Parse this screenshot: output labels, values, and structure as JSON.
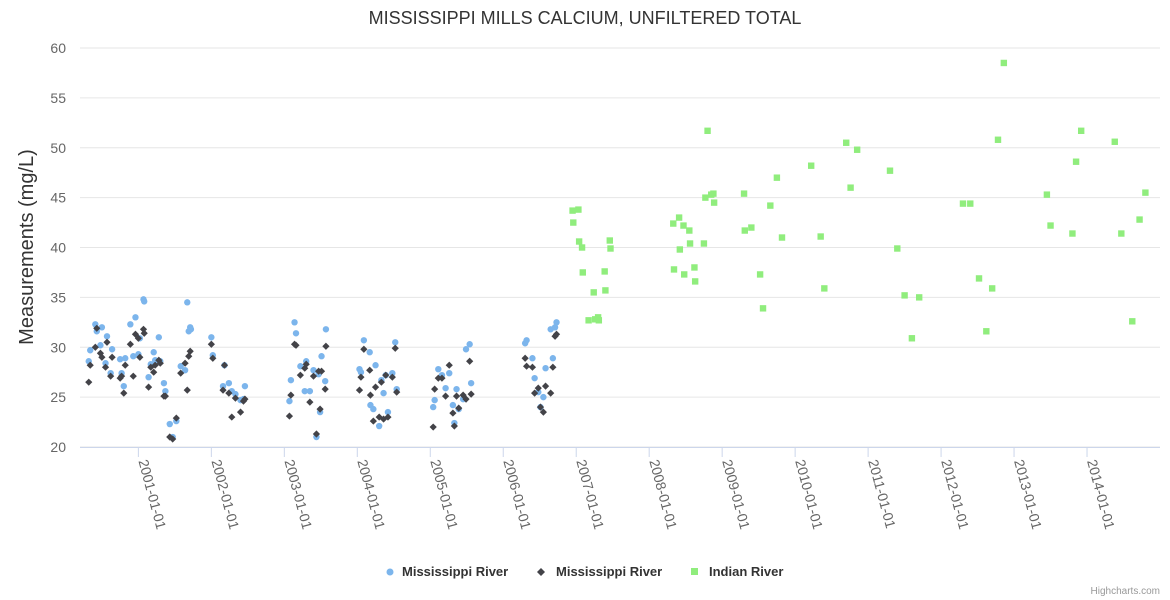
{
  "chart_data": {
    "type": "scatter",
    "title": "MISSISSIPPI MILLS CALCIUM, UNFILTERED TOTAL",
    "xlabel": "",
    "ylabel": "Measurements (mg/L)",
    "ylim": [
      20,
      60
    ],
    "yticks": [
      20,
      25,
      30,
      35,
      40,
      45,
      50,
      55,
      60
    ],
    "xlim": [
      2000.2,
      2015.0
    ],
    "xticks": [
      {
        "value": 2001.0,
        "label": "2001-01-01"
      },
      {
        "value": 2002.0,
        "label": "2002-01-01"
      },
      {
        "value": 2003.0,
        "label": "2003-01-01"
      },
      {
        "value": 2004.0,
        "label": "2004-01-01"
      },
      {
        "value": 2005.0,
        "label": "2005-01-01"
      },
      {
        "value": 2006.0,
        "label": "2006-01-01"
      },
      {
        "value": 2007.0,
        "label": "2007-01-01"
      },
      {
        "value": 2008.0,
        "label": "2008-01-01"
      },
      {
        "value": 2009.0,
        "label": "2009-01-01"
      },
      {
        "value": 2010.0,
        "label": "2010-01-01"
      },
      {
        "value": 2011.0,
        "label": "2011-01-01"
      },
      {
        "value": 2012.0,
        "label": "2012-01-01"
      },
      {
        "value": 2013.0,
        "label": "2013-01-01"
      },
      {
        "value": 2014.0,
        "label": "2014-01-01"
      }
    ],
    "grid": true,
    "legend_position": "bottom-center",
    "series": [
      {
        "name": "Mississippi River",
        "marker": "circle",
        "color": "#7cb5ec",
        "points": [
          [
            2000.32,
            28.6
          ],
          [
            2000.34,
            29.7
          ],
          [
            2000.41,
            32.3
          ],
          [
            2000.43,
            31.6
          ],
          [
            2000.48,
            30.2
          ],
          [
            2000.5,
            32.0
          ],
          [
            2000.55,
            28.4
          ],
          [
            2000.57,
            31.1
          ],
          [
            2000.62,
            27.4
          ],
          [
            2000.64,
            29.8
          ],
          [
            2000.75,
            28.8
          ],
          [
            2000.77,
            27.4
          ],
          [
            2000.8,
            26.1
          ],
          [
            2000.82,
            28.9
          ],
          [
            2000.89,
            32.3
          ],
          [
            2000.93,
            29.1
          ],
          [
            2000.96,
            33.0
          ],
          [
            2001.0,
            29.3
          ],
          [
            2001.02,
            30.9
          ],
          [
            2001.07,
            34.8
          ],
          [
            2001.08,
            34.6
          ],
          [
            2001.14,
            27.0
          ],
          [
            2001.17,
            28.3
          ],
          [
            2001.21,
            29.5
          ],
          [
            2001.23,
            28.7
          ],
          [
            2001.28,
            31.0
          ],
          [
            2001.3,
            28.6
          ],
          [
            2001.35,
            26.4
          ],
          [
            2001.37,
            25.6
          ],
          [
            2001.43,
            22.3
          ],
          [
            2001.47,
            21.0
          ],
          [
            2001.52,
            22.6
          ],
          [
            2001.58,
            28.1
          ],
          [
            2001.64,
            27.7
          ],
          [
            2001.67,
            34.5
          ],
          [
            2001.69,
            31.6
          ],
          [
            2001.71,
            32.0
          ],
          [
            2001.72,
            31.8
          ],
          [
            2002.0,
            31.0
          ],
          [
            2002.02,
            29.2
          ],
          [
            2002.16,
            26.1
          ],
          [
            2002.18,
            28.2
          ],
          [
            2002.24,
            26.4
          ],
          [
            2002.28,
            25.6
          ],
          [
            2002.33,
            25.3
          ],
          [
            2002.4,
            24.7
          ],
          [
            2002.44,
            24.8
          ],
          [
            2002.46,
            26.1
          ],
          [
            2003.07,
            24.6
          ],
          [
            2003.09,
            26.7
          ],
          [
            2003.14,
            32.5
          ],
          [
            2003.16,
            31.4
          ],
          [
            2003.22,
            28.1
          ],
          [
            2003.28,
            25.6
          ],
          [
            2003.3,
            28.6
          ],
          [
            2003.35,
            25.6
          ],
          [
            2003.4,
            27.7
          ],
          [
            2003.44,
            21.0
          ],
          [
            2003.47,
            27.3
          ],
          [
            2003.49,
            23.5
          ],
          [
            2003.51,
            29.1
          ],
          [
            2003.56,
            26.6
          ],
          [
            2003.57,
            31.8
          ],
          [
            2004.03,
            27.8
          ],
          [
            2004.05,
            27.5
          ],
          [
            2004.09,
            30.7
          ],
          [
            2004.17,
            29.5
          ],
          [
            2004.18,
            24.2
          ],
          [
            2004.22,
            23.8
          ],
          [
            2004.25,
            28.2
          ],
          [
            2004.3,
            22.1
          ],
          [
            2004.33,
            26.7
          ],
          [
            2004.36,
            25.4
          ],
          [
            2004.39,
            27.2
          ],
          [
            2004.42,
            23.5
          ],
          [
            2004.48,
            27.4
          ],
          [
            2004.52,
            30.5
          ],
          [
            2004.54,
            25.8
          ],
          [
            2005.04,
            24.0
          ],
          [
            2005.06,
            24.7
          ],
          [
            2005.11,
            27.8
          ],
          [
            2005.16,
            27.2
          ],
          [
            2005.21,
            25.9
          ],
          [
            2005.26,
            27.4
          ],
          [
            2005.31,
            24.2
          ],
          [
            2005.33,
            22.4
          ],
          [
            2005.36,
            25.8
          ],
          [
            2005.39,
            23.8
          ],
          [
            2005.45,
            24.8
          ],
          [
            2005.49,
            29.8
          ],
          [
            2005.54,
            30.3
          ],
          [
            2005.56,
            26.4
          ],
          [
            2006.3,
            30.4
          ],
          [
            2006.32,
            30.7
          ],
          [
            2006.4,
            28.9
          ],
          [
            2006.43,
            26.9
          ],
          [
            2006.48,
            25.5
          ],
          [
            2006.51,
            24.0
          ],
          [
            2006.55,
            25.0
          ],
          [
            2006.58,
            27.9
          ],
          [
            2006.65,
            31.8
          ],
          [
            2006.68,
            28.9
          ],
          [
            2006.71,
            32.0
          ],
          [
            2006.73,
            32.5
          ]
        ]
      },
      {
        "name": "Mississippi River",
        "marker": "diamond",
        "color": "#434348",
        "points": [
          [
            2000.32,
            26.5
          ],
          [
            2000.34,
            28.2
          ],
          [
            2000.41,
            30.0
          ],
          [
            2000.43,
            31.9
          ],
          [
            2000.48,
            29.4
          ],
          [
            2000.5,
            29.0
          ],
          [
            2000.55,
            28.0
          ],
          [
            2000.57,
            30.5
          ],
          [
            2000.62,
            27.1
          ],
          [
            2000.64,
            29.0
          ],
          [
            2000.75,
            26.9
          ],
          [
            2000.77,
            27.1
          ],
          [
            2000.8,
            25.4
          ],
          [
            2000.82,
            28.2
          ],
          [
            2000.89,
            30.3
          ],
          [
            2000.93,
            27.1
          ],
          [
            2000.96,
            31.3
          ],
          [
            2001.0,
            30.9
          ],
          [
            2001.02,
            29.0
          ],
          [
            2001.07,
            31.8
          ],
          [
            2001.08,
            31.4
          ],
          [
            2001.14,
            26.0
          ],
          [
            2001.17,
            28.0
          ],
          [
            2001.21,
            27.5
          ],
          [
            2001.23,
            28.2
          ],
          [
            2001.28,
            28.7
          ],
          [
            2001.3,
            28.4
          ],
          [
            2001.35,
            25.1
          ],
          [
            2001.37,
            25.1
          ],
          [
            2001.43,
            21.0
          ],
          [
            2001.47,
            20.8
          ],
          [
            2001.52,
            22.9
          ],
          [
            2001.58,
            27.4
          ],
          [
            2001.64,
            28.4
          ],
          [
            2001.67,
            25.7
          ],
          [
            2001.69,
            29.1
          ],
          [
            2001.71,
            29.6
          ],
          [
            2002.0,
            30.3
          ],
          [
            2002.02,
            28.9
          ],
          [
            2002.16,
            25.7
          ],
          [
            2002.18,
            28.2
          ],
          [
            2002.24,
            25.4
          ],
          [
            2002.28,
            23.0
          ],
          [
            2002.33,
            24.9
          ],
          [
            2002.4,
            23.5
          ],
          [
            2002.44,
            24.6
          ],
          [
            2002.46,
            24.8
          ],
          [
            2003.07,
            23.1
          ],
          [
            2003.09,
            25.2
          ],
          [
            2003.14,
            30.3
          ],
          [
            2003.16,
            30.2
          ],
          [
            2003.22,
            27.2
          ],
          [
            2003.28,
            27.9
          ],
          [
            2003.3,
            28.3
          ],
          [
            2003.35,
            24.5
          ],
          [
            2003.4,
            27.1
          ],
          [
            2003.44,
            21.3
          ],
          [
            2003.47,
            27.6
          ],
          [
            2003.49,
            23.8
          ],
          [
            2003.51,
            27.6
          ],
          [
            2003.56,
            25.8
          ],
          [
            2003.57,
            30.1
          ],
          [
            2004.03,
            25.7
          ],
          [
            2004.05,
            27.0
          ],
          [
            2004.09,
            29.8
          ],
          [
            2004.17,
            27.7
          ],
          [
            2004.18,
            25.2
          ],
          [
            2004.22,
            22.6
          ],
          [
            2004.25,
            26.0
          ],
          [
            2004.3,
            23.0
          ],
          [
            2004.33,
            26.5
          ],
          [
            2004.36,
            22.8
          ],
          [
            2004.39,
            27.2
          ],
          [
            2004.42,
            23.0
          ],
          [
            2004.48,
            27.0
          ],
          [
            2004.52,
            29.9
          ],
          [
            2004.54,
            25.5
          ],
          [
            2005.04,
            22.0
          ],
          [
            2005.06,
            25.8
          ],
          [
            2005.11,
            26.9
          ],
          [
            2005.16,
            26.9
          ],
          [
            2005.21,
            25.1
          ],
          [
            2005.26,
            28.2
          ],
          [
            2005.31,
            23.4
          ],
          [
            2005.33,
            22.1
          ],
          [
            2005.36,
            25.1
          ],
          [
            2005.39,
            23.9
          ],
          [
            2005.45,
            25.2
          ],
          [
            2005.49,
            24.8
          ],
          [
            2005.54,
            28.6
          ],
          [
            2005.56,
            25.3
          ],
          [
            2006.3,
            28.9
          ],
          [
            2006.32,
            28.1
          ],
          [
            2006.4,
            28.0
          ],
          [
            2006.43,
            25.4
          ],
          [
            2006.48,
            25.9
          ],
          [
            2006.51,
            24.0
          ],
          [
            2006.55,
            23.5
          ],
          [
            2006.58,
            26.1
          ],
          [
            2006.65,
            25.4
          ],
          [
            2006.68,
            28.0
          ],
          [
            2006.71,
            31.1
          ],
          [
            2006.73,
            31.3
          ]
        ]
      },
      {
        "name": "Indian River",
        "marker": "square",
        "color": "#90ed7d",
        "points": [
          [
            2006.95,
            43.7
          ],
          [
            2006.96,
            42.5
          ],
          [
            2007.03,
            43.8
          ],
          [
            2007.04,
            40.6
          ],
          [
            2007.08,
            40.0
          ],
          [
            2007.09,
            37.5
          ],
          [
            2007.17,
            32.7
          ],
          [
            2007.24,
            35.5
          ],
          [
            2007.26,
            32.8
          ],
          [
            2007.3,
            33.0
          ],
          [
            2007.31,
            32.7
          ],
          [
            2007.39,
            37.6
          ],
          [
            2007.4,
            35.7
          ],
          [
            2007.46,
            40.7
          ],
          [
            2007.47,
            39.9
          ],
          [
            2008.33,
            42.4
          ],
          [
            2008.34,
            37.8
          ],
          [
            2008.41,
            43.0
          ],
          [
            2008.42,
            39.8
          ],
          [
            2008.47,
            42.2
          ],
          [
            2008.48,
            37.3
          ],
          [
            2008.55,
            41.7
          ],
          [
            2008.56,
            40.4
          ],
          [
            2008.62,
            38.0
          ],
          [
            2008.63,
            36.6
          ],
          [
            2008.75,
            40.4
          ],
          [
            2008.77,
            45.0
          ],
          [
            2008.8,
            51.7
          ],
          [
            2008.85,
            45.3
          ],
          [
            2008.88,
            45.4
          ],
          [
            2008.89,
            44.5
          ],
          [
            2009.3,
            45.4
          ],
          [
            2009.31,
            41.7
          ],
          [
            2009.4,
            42.0
          ],
          [
            2009.52,
            37.3
          ],
          [
            2009.56,
            33.9
          ],
          [
            2009.66,
            44.2
          ],
          [
            2009.75,
            47.0
          ],
          [
            2009.82,
            41.0
          ],
          [
            2010.22,
            48.2
          ],
          [
            2010.35,
            41.1
          ],
          [
            2010.4,
            35.9
          ],
          [
            2010.7,
            50.5
          ],
          [
            2010.76,
            46.0
          ],
          [
            2010.85,
            49.8
          ],
          [
            2011.3,
            47.7
          ],
          [
            2011.4,
            39.9
          ],
          [
            2011.5,
            35.2
          ],
          [
            2011.6,
            30.9
          ],
          [
            2011.7,
            35.0
          ],
          [
            2012.3,
            44.4
          ],
          [
            2012.4,
            44.4
          ],
          [
            2012.52,
            36.9
          ],
          [
            2012.62,
            31.6
          ],
          [
            2012.7,
            35.9
          ],
          [
            2012.78,
            50.8
          ],
          [
            2012.86,
            58.5
          ],
          [
            2013.45,
            45.3
          ],
          [
            2013.5,
            42.2
          ],
          [
            2013.8,
            41.4
          ],
          [
            2013.85,
            48.6
          ],
          [
            2013.92,
            51.7
          ],
          [
            2014.38,
            50.6
          ],
          [
            2014.47,
            41.4
          ],
          [
            2014.62,
            32.6
          ],
          [
            2014.72,
            42.8
          ],
          [
            2014.8,
            45.5
          ]
        ]
      }
    ]
  },
  "legend": [
    {
      "label": "Mississippi River"
    },
    {
      "label": "Mississippi River"
    },
    {
      "label": "Indian River"
    }
  ],
  "credits": "Highcharts.com"
}
